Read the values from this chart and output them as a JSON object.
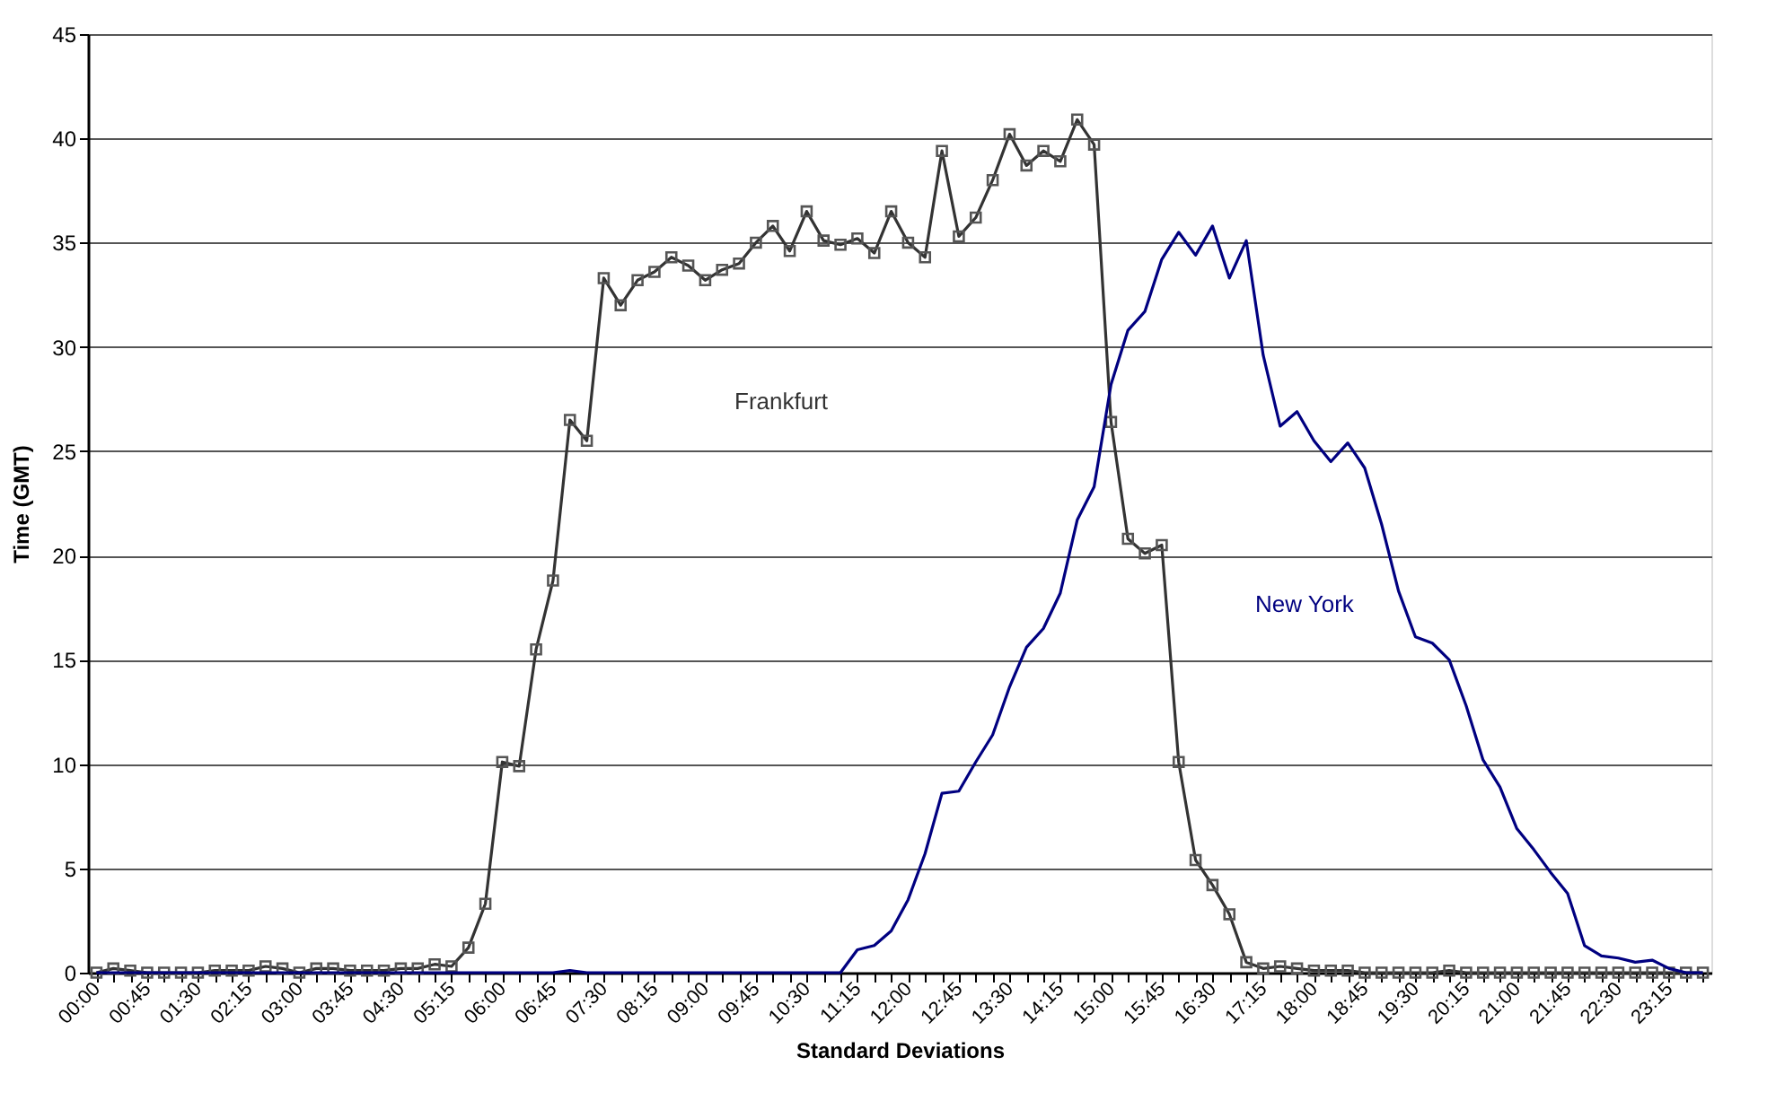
{
  "chart_data": {
    "type": "line",
    "xlabel": "Standard Deviations",
    "ylabel": "Time (GMT)",
    "categories": [
      "00:00",
      null,
      null,
      "00:45",
      null,
      null,
      "01:30",
      null,
      null,
      "02:15",
      null,
      null,
      "03:00",
      null,
      null,
      "03:45",
      null,
      null,
      "04:30",
      null,
      null,
      "05:15",
      null,
      null,
      "06:00",
      null,
      null,
      "06:45",
      null,
      null,
      "07:30",
      null,
      null,
      "08:15",
      null,
      null,
      "09:00",
      null,
      null,
      "09:45",
      null,
      null,
      "10:30",
      null,
      null,
      "11:15",
      null,
      null,
      "12:00",
      null,
      null,
      "12:45",
      null,
      null,
      "13:30",
      null,
      null,
      "14:15",
      null,
      null,
      "15:00",
      null,
      null,
      "15:45",
      null,
      null,
      "16:30",
      null,
      null,
      "17:15",
      null,
      null,
      "18:00",
      null,
      null,
      "18:45",
      null,
      null,
      "19:30",
      null,
      null,
      "20:15",
      null,
      null,
      "21:00",
      null,
      null,
      "21:45",
      null,
      null,
      "22:30",
      null,
      null,
      "23:15",
      null,
      null
    ],
    "series": [
      {
        "name": "Frankfurt",
        "color": "#333333",
        "marker": "square",
        "values": [
          0,
          0.2,
          0.1,
          0,
          0,
          0,
          0,
          0.1,
          0.1,
          0.1,
          0.3,
          0.2,
          0,
          0.2,
          0.2,
          0.1,
          0.1,
          0.1,
          0.2,
          0.2,
          0.4,
          0.3,
          1.2,
          3.3,
          10.1,
          9.9,
          15.5,
          18.8,
          26.5,
          25.5,
          33.3,
          32.0,
          33.2,
          33.6,
          34.3,
          33.9,
          33.2,
          33.7,
          34.0,
          35.0,
          35.8,
          34.6,
          36.5,
          35.1,
          34.9,
          35.2,
          34.5,
          36.5,
          35.0,
          34.3,
          39.4,
          35.3,
          36.2,
          38.0,
          40.2,
          38.7,
          39.4,
          38.9,
          40.9,
          39.7,
          26.4,
          20.8,
          20.1,
          20.5,
          10.1,
          5.4,
          4.2,
          2.8,
          0.5,
          0.2,
          0.3,
          0.2,
          0.1,
          0.1,
          0.1,
          0,
          0,
          0,
          0,
          0,
          0.1,
          0,
          0,
          0,
          0,
          0,
          0,
          0,
          0,
          0,
          0,
          0,
          0,
          0,
          0,
          0
        ]
      },
      {
        "name": "New York",
        "color": "#000080",
        "marker": "none",
        "values": [
          0,
          0,
          0,
          0,
          0,
          0,
          0,
          0,
          0,
          0,
          0,
          0,
          0,
          0,
          0,
          0,
          0,
          0,
          0,
          0,
          0,
          0,
          0,
          0,
          0,
          0,
          0,
          0,
          0.1,
          0,
          0,
          0,
          0,
          0,
          0,
          0,
          0,
          0,
          0,
          0,
          0,
          0,
          0,
          0,
          0,
          1.1,
          1.3,
          2.0,
          3.5,
          5.7,
          8.6,
          8.7,
          10.1,
          11.4,
          13.7,
          15.6,
          16.5,
          18.2,
          21.7,
          23.3,
          28.2,
          30.8,
          31.7,
          34.2,
          35.5,
          34.4,
          35.8,
          33.3,
          35.1,
          29.6,
          26.2,
          26.9,
          25.5,
          24.5,
          25.4,
          24.2,
          21.5,
          18.3,
          16.1,
          15.8,
          15.0,
          12.8,
          10.2,
          8.9,
          6.9,
          5.9,
          4.8,
          3.8,
          1.3,
          0.8,
          0.7,
          0.5,
          0.6,
          0.2,
          0,
          0
        ]
      }
    ],
    "ylim": [
      0,
      45
    ],
    "yticks": [
      0,
      5,
      10,
      15,
      20,
      25,
      30,
      35,
      40,
      45
    ],
    "grid": "y",
    "legend": false,
    "line_style": "solid"
  }
}
